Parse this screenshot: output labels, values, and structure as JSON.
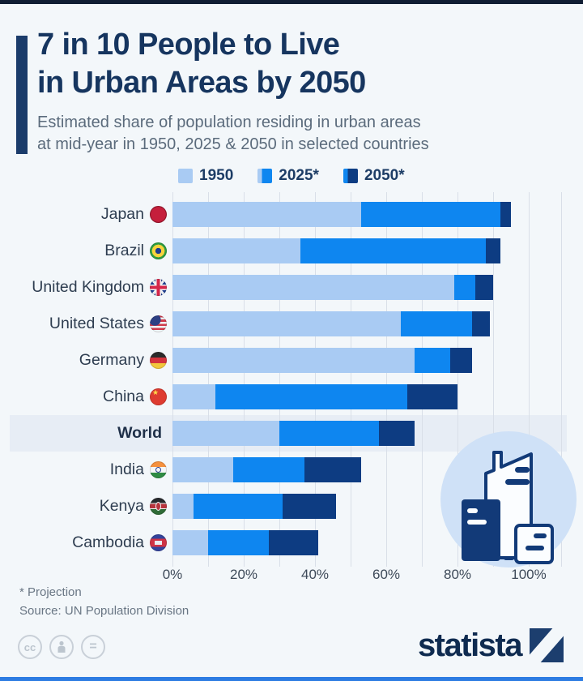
{
  "header": {
    "title_line1": "7 in 10 People to Live",
    "title_line2": "in Urban Areas by 2050",
    "subtitle_line1": "Estimated share of population residing in urban areas",
    "subtitle_line2": "at mid-year in 1950, 2025 & 2050 in selected countries"
  },
  "legend": {
    "items": [
      {
        "label": "1950",
        "swatch": [
          "#a9cbf3"
        ]
      },
      {
        "label": "2025*",
        "swatch": [
          "#a9cbf3",
          "#0e86f0"
        ]
      },
      {
        "label": "2050*",
        "swatch": [
          "#0e86f0",
          "#0d3c82"
        ]
      }
    ]
  },
  "chart_data": {
    "type": "bar",
    "orientation": "horizontal",
    "unit": "percent of population in urban areas",
    "categories": [
      "Japan",
      "Brazil",
      "United Kingdom",
      "United States",
      "Germany",
      "China",
      "World",
      "India",
      "Kenya",
      "Cambodia"
    ],
    "flags": [
      "japan",
      "brazil",
      "united-kingdom",
      "united-states",
      "germany",
      "china",
      null,
      "india",
      "kenya",
      "cambodia"
    ],
    "highlighted_category": "World",
    "series": [
      {
        "name": "1950",
        "color": "#a9cbf3",
        "values": [
          53,
          36,
          79,
          64,
          68,
          12,
          30,
          17,
          6,
          10
        ]
      },
      {
        "name": "2025*",
        "color": "#0e86f0",
        "values": [
          92,
          88,
          85,
          84,
          78,
          66,
          58,
          37,
          31,
          27
        ]
      },
      {
        "name": "2050*",
        "color": "#0d3c82",
        "values": [
          95,
          92,
          90,
          89,
          84,
          80,
          68,
          53,
          46,
          41
        ]
      }
    ],
    "x_ticks": [
      {
        "label": "0%",
        "value": 0
      },
      {
        "label": "20%",
        "value": 20
      },
      {
        "label": "40%",
        "value": 40
      },
      {
        "label": "60%",
        "value": 60
      },
      {
        "label": "80%",
        "value": 80
      },
      {
        "label": "100%",
        "value": 100
      }
    ],
    "xlim": [
      0,
      109
    ],
    "grid": true,
    "legend_position": "top"
  },
  "colors": {
    "background": "#f3f7fa",
    "title_navy": "#16355f",
    "subtitle_gray": "#5b6b7c",
    "series_1950": "#a9cbf3",
    "series_2025": "#0e86f0",
    "series_2050": "#0d3c82",
    "highlight_band": "#e7edf5",
    "gridline": "#d9dfe8",
    "illustration_circle": "#cfe1f7",
    "brand_navy": "#0f2b50",
    "top_edge": "#101d33",
    "bottom_edge": "#2d7ce2"
  },
  "footer": {
    "footnote": "* Projection",
    "source": "Source: UN Population Division",
    "brand": "statista",
    "license_badges": [
      "cc",
      "attribution-person",
      "equals"
    ]
  }
}
